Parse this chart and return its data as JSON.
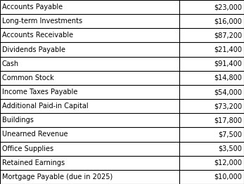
{
  "rows": [
    [
      "Accounts Payable",
      "$23,000"
    ],
    [
      "Long-term Investments",
      "$16,000"
    ],
    [
      "Accounts Receivable",
      "$87,200"
    ],
    [
      "Dividends Payable",
      "$21,400"
    ],
    [
      "Cash",
      "$91,400"
    ],
    [
      "Common Stock",
      "$14,800"
    ],
    [
      "Income Taxes Payable",
      "$54,000"
    ],
    [
      "Additional Paid-in Capital",
      "$73,200"
    ],
    [
      "Buildings",
      "$17,800"
    ],
    [
      "Unearned Revenue",
      "$7,500"
    ],
    [
      "Office Supplies",
      "$3,500"
    ],
    [
      "Retained Earnings",
      "$12,000"
    ],
    [
      "Mortgage Payable (due in 2025)",
      "$10,000"
    ]
  ],
  "col_split": 0.735,
  "bg_color": "#ffffff",
  "border_color": "#000000",
  "text_color": "#000000",
  "font_size": 7.0,
  "font_family": "Courier New"
}
